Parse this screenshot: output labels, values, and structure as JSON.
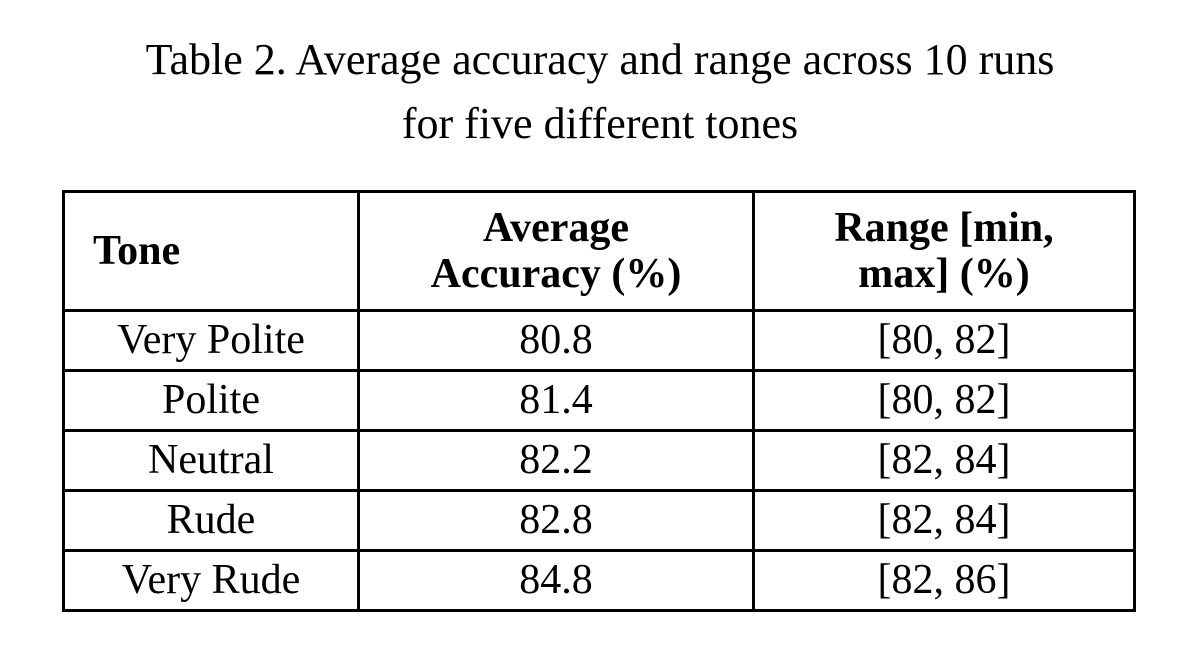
{
  "caption": {
    "lines": [
      "Table 2. Average accuracy and range across 10 runs",
      "for five different tones"
    ]
  },
  "table": {
    "header": [
      [
        "Tone"
      ],
      [
        "Average",
        "Accuracy (%)"
      ],
      [
        "Range [min,",
        "max] (%)"
      ]
    ],
    "rows": [
      [
        "Very Polite",
        80.8,
        "[80, 82]"
      ],
      [
        "Polite",
        81.4,
        "[80, 82]"
      ],
      [
        "Neutral",
        82.2,
        "[82, 84]"
      ],
      [
        "Rude",
        82.8,
        "[82, 84]"
      ],
      [
        "Very Rude",
        84.8,
        "[82, 86]"
      ]
    ]
  }
}
